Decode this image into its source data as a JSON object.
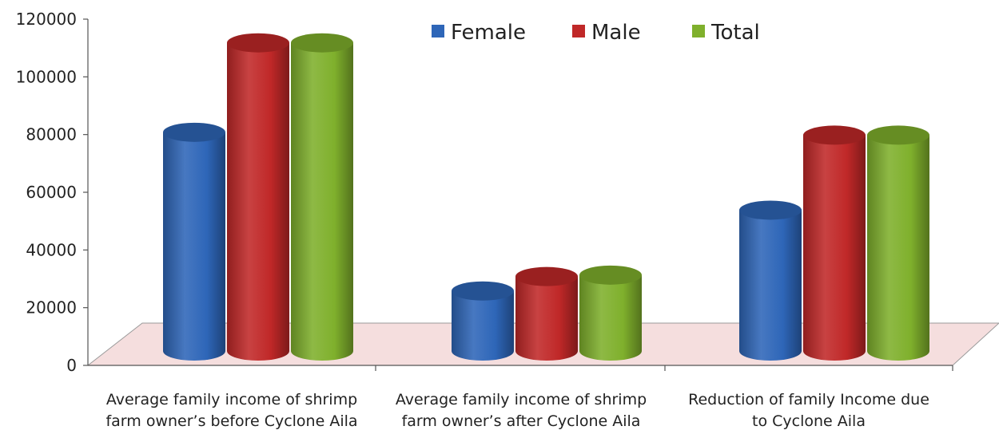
{
  "chart_data": {
    "type": "bar",
    "title": "",
    "xlabel": "",
    "ylabel": "",
    "ylim": [
      0,
      120000
    ],
    "yticks": [
      0,
      20000,
      40000,
      60000,
      80000,
      100000,
      120000
    ],
    "grid": false,
    "legend_position": "top-right",
    "categories": [
      [
        "Average family income of shrimp",
        "farm owner’s before Cyclone Aila"
      ],
      [
        "Average family income of shrimp",
        "farm owner’s after Cyclone Aila"
      ],
      [
        "Reduction of family Income due",
        "to Cyclone Aila"
      ]
    ],
    "series": [
      {
        "name": "Female",
        "color": "#2e66b8",
        "values": [
          83000,
          28000,
          56000
        ]
      },
      {
        "name": "Male",
        "color": "#c02828",
        "values": [
          114000,
          33000,
          82000
        ]
      },
      {
        "name": "Total",
        "color": "#7fb02c",
        "values": [
          114000,
          33500,
          82000
        ]
      }
    ],
    "floor_color": "#f5dede"
  }
}
